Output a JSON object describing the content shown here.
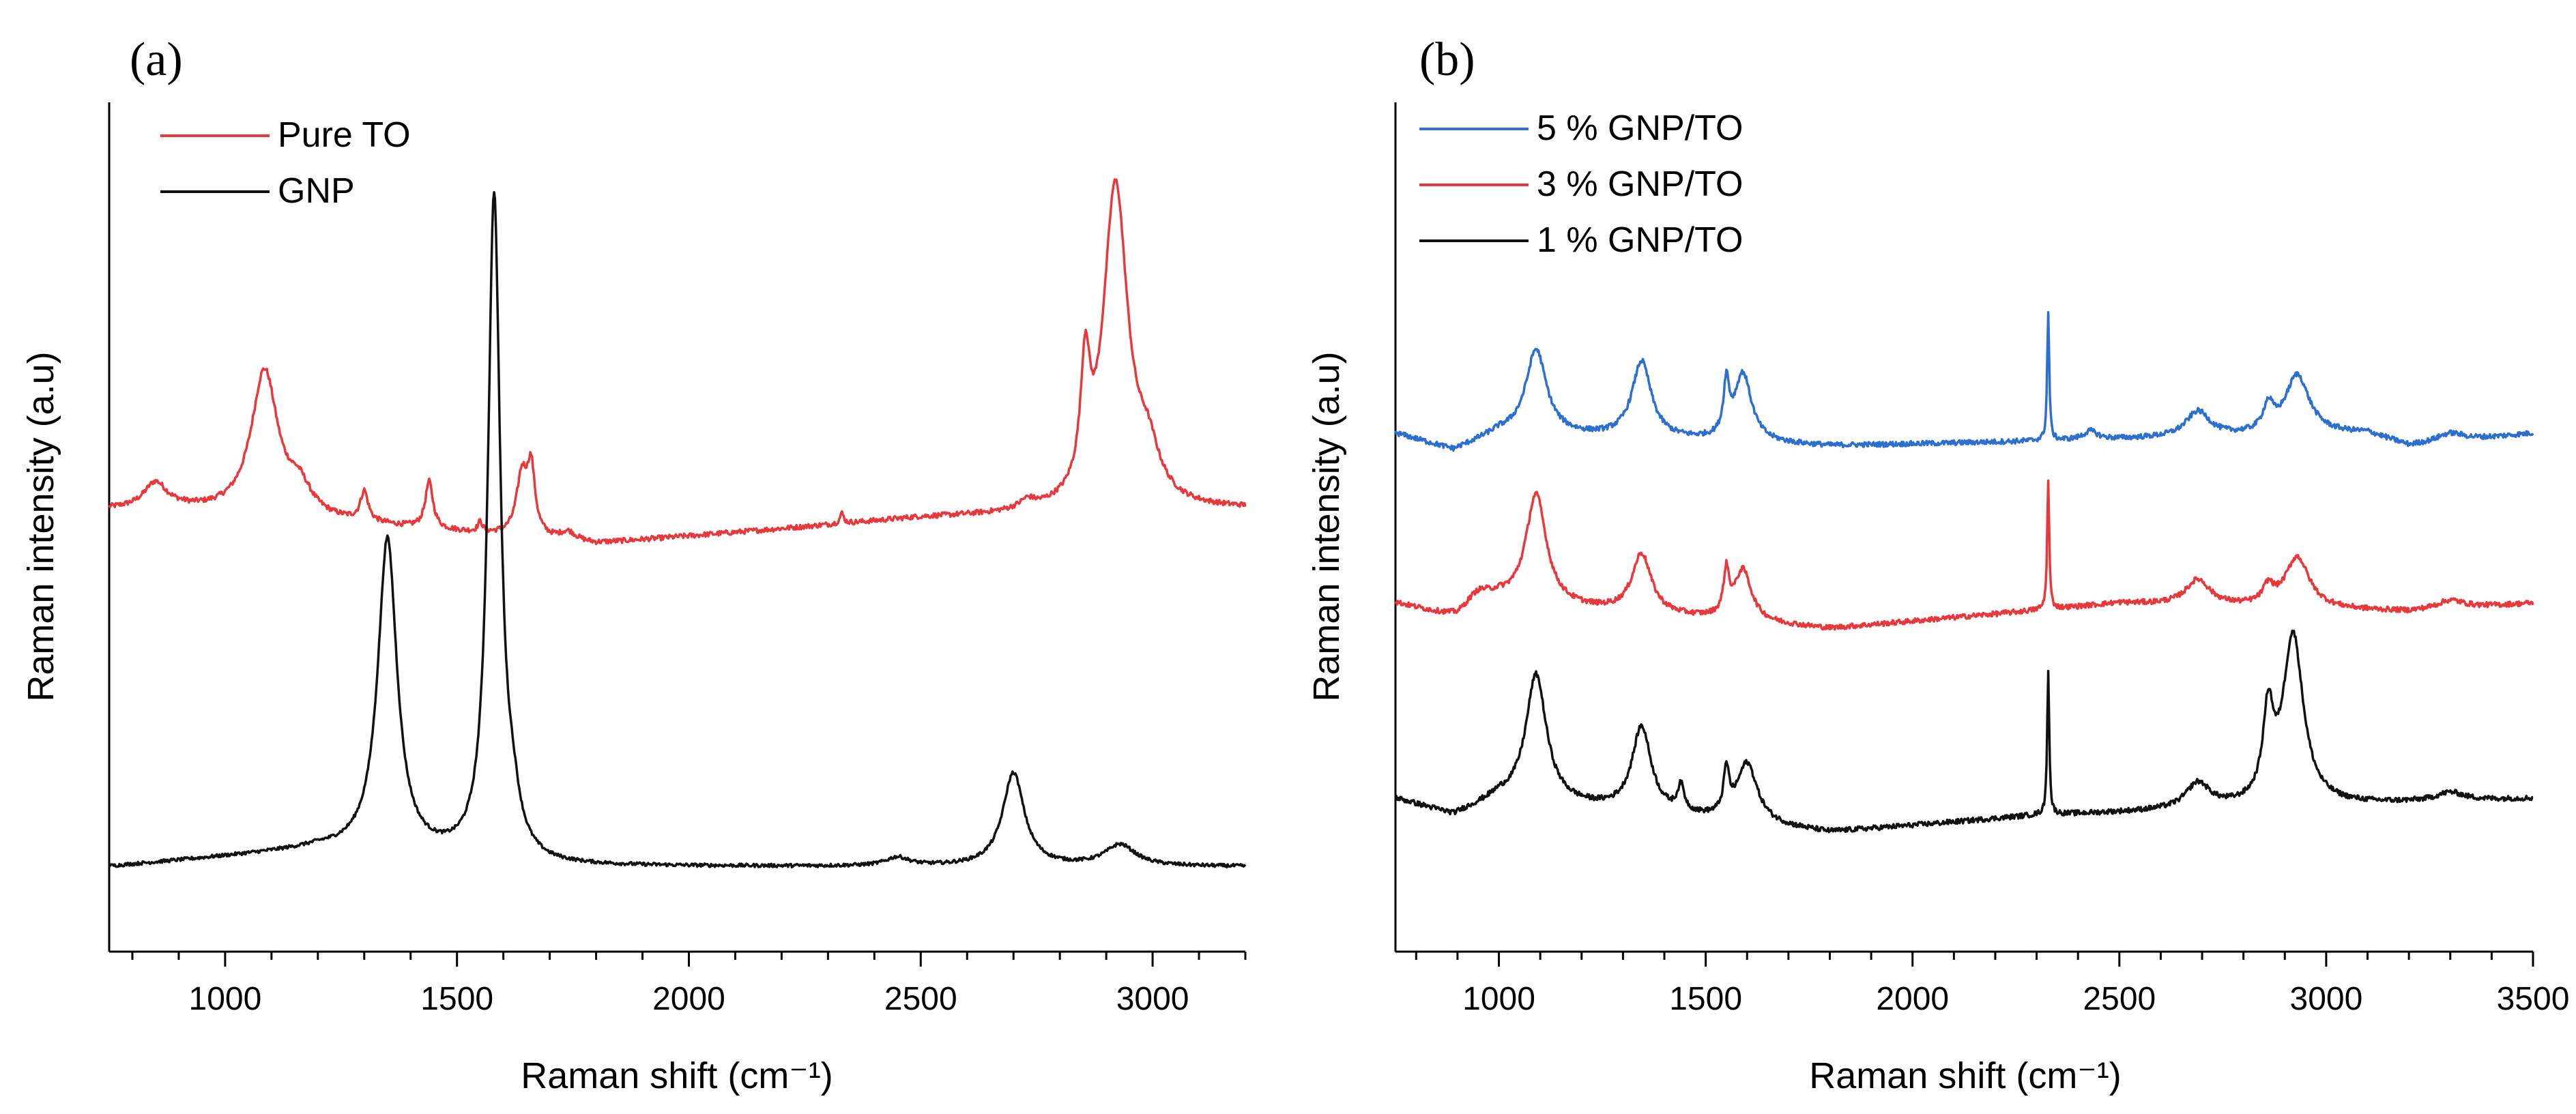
{
  "chart_data": [
    {
      "panel": "(a)",
      "type": "line",
      "xlabel": "Raman shift (cm⁻¹)",
      "ylabel": "Raman intensity (a.u)",
      "xlim": [
        750,
        3200
      ],
      "ylim": [
        0,
        1.0
      ],
      "xticks": [
        "1000",
        "1500",
        "2000",
        "2500",
        "3000"
      ],
      "yticks": [],
      "grid": false,
      "legend_position": "top-left",
      "series": [
        {
          "name": "Pure TO",
          "color": "#e8383b",
          "baseline": 0.52,
          "peaks": [
            [
              850,
              0.03,
              30
            ],
            [
              1085,
              0.17,
              35
            ],
            [
              1160,
              0.03,
              30
            ],
            [
              1300,
              0.035,
              10
            ],
            [
              1440,
              0.055,
              10
            ],
            [
              1550,
              0.012,
              6
            ],
            [
              1640,
              0.07,
              14
            ],
            [
              1660,
              0.075,
              10
            ],
            [
              1740,
              0.01,
              20
            ],
            [
              2330,
              0.012,
              5
            ],
            [
              2730,
              0.01,
              20
            ],
            [
              2855,
              0.14,
              12
            ],
            [
              2920,
              0.38,
              32
            ],
            [
              2990,
              0.05,
              30
            ]
          ],
          "drift": [
            [
              750,
              0.0
            ],
            [
              900,
              0.0
            ],
            [
              1800,
              -0.04
            ],
            [
              2500,
              -0.01
            ],
            [
              3200,
              0.0
            ]
          ],
          "noise": 0.003
        },
        {
          "name": "GNP",
          "color": "#111111",
          "baseline": 0.1,
          "peaks": [
            [
              1350,
              0.37,
              25
            ],
            [
              1580,
              0.78,
              16
            ],
            [
              1620,
              0.04,
              18
            ],
            [
              2450,
              0.01,
              30
            ],
            [
              2700,
              0.11,
              28
            ],
            [
              2930,
              0.025,
              40
            ]
          ],
          "drift": [
            [
              750,
              0.0
            ],
            [
              1200,
              0.02
            ],
            [
              1700,
              0.0
            ],
            [
              3200,
              0.0
            ]
          ],
          "noise": 0.002
        }
      ]
    },
    {
      "panel": "(b)",
      "type": "line",
      "xlabel": "Raman shift (cm⁻¹)",
      "ylabel": "Raman intensity (a.u)",
      "xlim": [
        750,
        3500
      ],
      "ylim": [
        0,
        1.0
      ],
      "xticks": [
        "1000",
        "1500",
        "2000",
        "2500",
        "3000",
        "3500"
      ],
      "yticks": [],
      "grid": false,
      "legend_position": "top-left",
      "series": [
        {
          "name": "5 % GNP/TO",
          "color": "#2c6fd1",
          "baseline": 0.61,
          "peaks": [
            [
              1090,
              0.1,
              30
            ],
            [
              1345,
              0.09,
              28
            ],
            [
              1550,
              0.06,
              8
            ],
            [
              1590,
              0.08,
              25
            ],
            [
              2328,
              0.15,
              3
            ],
            [
              2430,
              0.01,
              20
            ],
            [
              2690,
              0.03,
              35
            ],
            [
              2860,
              0.03,
              15
            ],
            [
              2930,
              0.07,
              35
            ],
            [
              3300,
              0.01,
              40
            ]
          ],
          "drift": [
            [
              750,
              0.0
            ],
            [
              890,
              -0.02
            ],
            [
              1000,
              0.0
            ],
            [
              1800,
              -0.015
            ],
            [
              3100,
              0.0
            ],
            [
              3200,
              -0.015
            ],
            [
              3500,
              0.0
            ]
          ],
          "noise": 0.003
        },
        {
          "name": "3 % GNP/TO",
          "color": "#e8383b",
          "baseline": 0.41,
          "peaks": [
            [
              950,
              0.02,
              40
            ],
            [
              1090,
              0.13,
              30
            ],
            [
              1345,
              0.07,
              28
            ],
            [
              1550,
              0.05,
              8
            ],
            [
              1590,
              0.06,
              25
            ],
            [
              2328,
              0.15,
              3
            ],
            [
              2690,
              0.03,
              35
            ],
            [
              2860,
              0.02,
              15
            ],
            [
              2930,
              0.06,
              35
            ],
            [
              3300,
              0.01,
              40
            ]
          ],
          "drift": [
            [
              750,
              0.0
            ],
            [
              900,
              -0.02
            ],
            [
              1000,
              0.0
            ],
            [
              1800,
              -0.03
            ],
            [
              2500,
              0.0
            ],
            [
              3200,
              -0.01
            ],
            [
              3500,
              0.0
            ]
          ],
          "noise": 0.003
        },
        {
          "name": "1 % GNP/TO",
          "color": "#111111",
          "baseline": 0.18,
          "peaks": [
            [
              1090,
              0.15,
              30
            ],
            [
              1345,
              0.1,
              28
            ],
            [
              1440,
              0.03,
              10
            ],
            [
              1550,
              0.05,
              8
            ],
            [
              1600,
              0.07,
              30
            ],
            [
              2328,
              0.17,
              3
            ],
            [
              2690,
              0.03,
              35
            ],
            [
              2860,
              0.1,
              15
            ],
            [
              2920,
              0.2,
              30
            ],
            [
              3300,
              0.01,
              40
            ]
          ],
          "drift": [
            [
              750,
              0.0
            ],
            [
              890,
              -0.02
            ],
            [
              1000,
              0.0
            ],
            [
              1800,
              -0.04
            ],
            [
              2300,
              -0.02
            ],
            [
              3500,
              0.0
            ]
          ],
          "noise": 0.003
        }
      ]
    }
  ]
}
